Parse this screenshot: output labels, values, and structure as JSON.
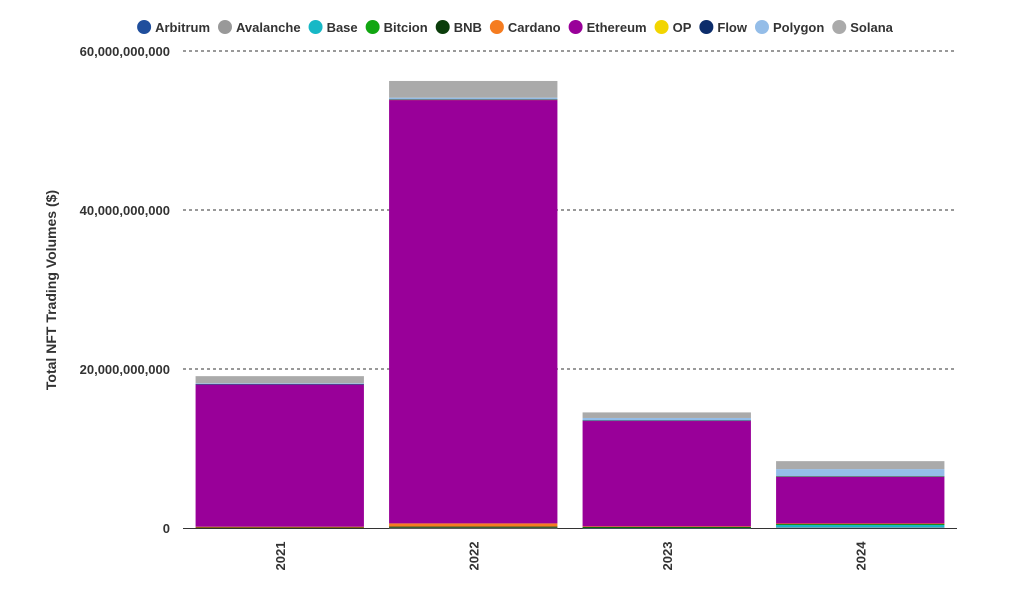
{
  "chart_data": {
    "type": "bar",
    "stacked": true,
    "ylabel": "Total NFT Trading Volumes ($)",
    "xlabel": "",
    "ylim": [
      0,
      60000000000
    ],
    "yticks": [
      0,
      20000000000,
      40000000000,
      60000000000
    ],
    "ytick_labels": [
      "0",
      "20,000,000,000",
      "40,000,000,000",
      "60,000,000,000"
    ],
    "grid": "horizontal-dashed",
    "legend_position": "top",
    "categories": [
      "2021",
      "2022",
      "2023",
      "2024"
    ],
    "series": [
      {
        "name": "Arbitrum",
        "color": "#1f4e9c",
        "values": [
          0,
          0,
          20000000,
          60000000
        ]
      },
      {
        "name": "Avalanche",
        "color": "#999999",
        "values": [
          0,
          30000000,
          30000000,
          20000000
        ]
      },
      {
        "name": "Base",
        "color": "#17b8c6",
        "values": [
          0,
          0,
          0,
          300000000
        ]
      },
      {
        "name": "Bitcion",
        "color": "#11a611",
        "values": [
          0,
          0,
          20000000,
          120000000
        ]
      },
      {
        "name": "BNB",
        "color": "#0b3d0b",
        "values": [
          60000000,
          150000000,
          60000000,
          40000000
        ]
      },
      {
        "name": "Cardano",
        "color": "#f57c20",
        "values": [
          100000000,
          400000000,
          70000000,
          30000000
        ]
      },
      {
        "name": "Ethereum",
        "color": "#990099",
        "values": [
          17900000000,
          53300000000,
          13300000000,
          5900000000
        ]
      },
      {
        "name": "OP",
        "color": "#f2d500",
        "values": [
          0,
          20000000,
          30000000,
          30000000
        ]
      },
      {
        "name": "Flow",
        "color": "#0c2d6b",
        "values": [
          40000000,
          30000000,
          10000000,
          10000000
        ]
      },
      {
        "name": "Polygon",
        "color": "#94bde8",
        "values": [
          100000000,
          200000000,
          300000000,
          900000000
        ]
      },
      {
        "name": "Solana",
        "color": "#aaaaaa",
        "values": [
          900000000,
          2100000000,
          700000000,
          1000000000
        ]
      }
    ]
  }
}
